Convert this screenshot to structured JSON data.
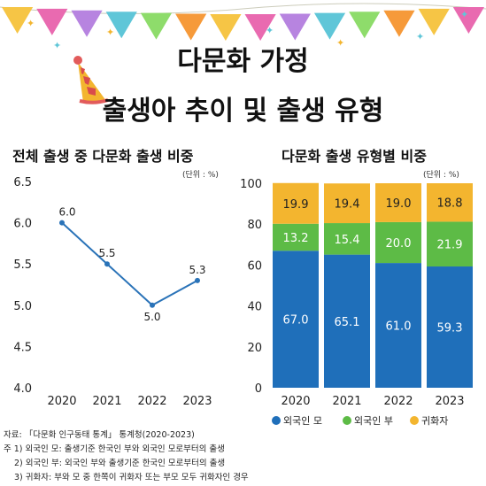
{
  "title_line1": "다문화 가정",
  "title_line2": "출생아 추이 및 출생 유형",
  "colors": {
    "line": "#2a73b8",
    "foreign_mother": "#1f6fba",
    "foreign_father": "#5dbb46",
    "naturalized": "#f3b52f",
    "bunting": [
      "#f6c545",
      "#e96ab0",
      "#b784e0",
      "#5fc6d8",
      "#8edc6b",
      "#f69a3a"
    ]
  },
  "chart_data": [
    {
      "type": "line",
      "title": "전체 출생 중 다문화 출생 비중",
      "unit": "(단위 : %)",
      "x": [
        "2020",
        "2021",
        "2022",
        "2023"
      ],
      "values": [
        6.0,
        5.5,
        5.0,
        5.3
      ],
      "value_labels": [
        "6.0",
        "5.5",
        "5.0",
        "5.3"
      ],
      "ylim": [
        4.0,
        6.5
      ],
      "yticks": [
        "4.0",
        "4.5",
        "5.0",
        "5.5",
        "6.0",
        "6.5"
      ],
      "grid": false
    },
    {
      "type": "bar",
      "stacked": true,
      "title": "다문화 출생 유형별 비중",
      "unit": "(단위 : %)",
      "categories": [
        "2020",
        "2021",
        "2022",
        "2023"
      ],
      "ylim": [
        0,
        100
      ],
      "yticks": [
        "0",
        "20",
        "40",
        "60",
        "80",
        "100"
      ],
      "series": [
        {
          "name": "외국인 모",
          "values": [
            67.0,
            65.1,
            61.0,
            59.3
          ],
          "labels": [
            "67.0",
            "65.1",
            "61.0",
            "59.3"
          ]
        },
        {
          "name": "외국인 부",
          "values": [
            13.2,
            15.4,
            20.0,
            21.9
          ],
          "labels": [
            "13.2",
            "15.4",
            "20.0",
            "21.9"
          ]
        },
        {
          "name": "귀화자",
          "values": [
            19.9,
            19.4,
            19.0,
            18.8
          ],
          "labels": [
            "19.9",
            "19.4",
            "19.0",
            "18.8"
          ]
        }
      ],
      "legend": "bottom-right"
    }
  ],
  "notes": {
    "source": "자료: 「다문화 인구동태 통계」 통계청(2020-2023)",
    "note1": "주 1) 외국인 모: 출생기준 한국인 부와 외국인 모로부터의 출생",
    "note2": "2) 외국인 부: 외국인 부와 출생기준 한국인 모로부터의 출생",
    "note3": "3) 귀화자: 부와 모 중 한쪽이 귀화자 또는 부모 모두 귀화자인 경우"
  }
}
